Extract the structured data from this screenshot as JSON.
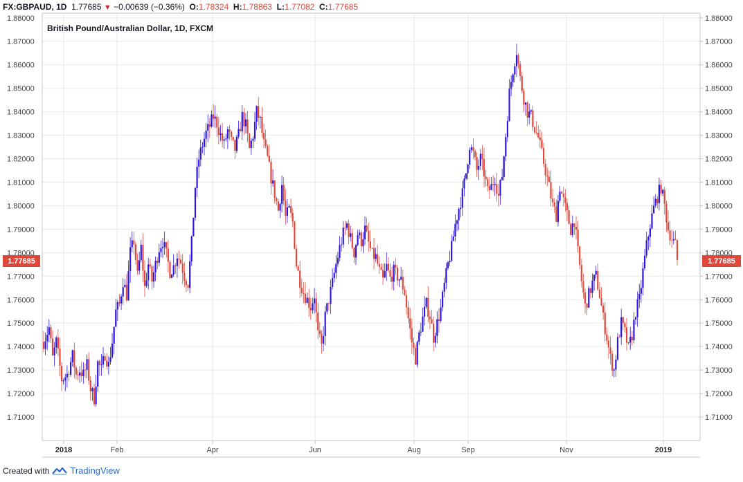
{
  "header": {
    "symbol": "FX:GBPAUD, 1D",
    "last": "1.77685",
    "change": "−0.00639 (−0.36%)",
    "o_label": "O:",
    "o_value": "1.78324",
    "h_label": "H:",
    "h_value": "1.78863",
    "l_label": "L:",
    "l_value": "1.77082",
    "c_label": "C:",
    "c_value": "1.77685"
  },
  "footer": {
    "created_with": "Created with",
    "brand": "TradingView"
  },
  "colors": {
    "up": "#2b16e0",
    "down": "#e0473b",
    "grid": "#e6e9ef",
    "axis": "#bfc3c9",
    "price_tag": "#e0473b"
  },
  "chart_data": {
    "type": "candlestick",
    "title": "British Pound/Australian Dollar, 1D, FXCM",
    "current_price": 1.77685,
    "current_price_label": "1.77685",
    "ylim": [
      1.7,
      1.882
    ],
    "y_ticks": [
      "1.71000",
      "1.72000",
      "1.73000",
      "1.74000",
      "1.75000",
      "1.76000",
      "1.77000",
      "1.78000",
      "1.79000",
      "1.80000",
      "1.81000",
      "1.82000",
      "1.83000",
      "1.84000",
      "1.85000",
      "1.86000",
      "1.87000",
      "1.88000"
    ],
    "x_ticks": [
      {
        "label": "2018",
        "bold": true
      },
      {
        "label": "Feb",
        "bold": false
      },
      {
        "label": "Apr",
        "bold": false
      },
      {
        "label": "Jun",
        "bold": false
      },
      {
        "label": "Aug",
        "bold": false
      },
      {
        "label": "Sep",
        "bold": false
      },
      {
        "label": "Nov",
        "bold": false
      },
      {
        "label": "2019",
        "bold": true
      }
    ],
    "grid": true,
    "path": [
      [
        0,
        1.742
      ],
      [
        3,
        1.748
      ],
      [
        5,
        1.735
      ],
      [
        7,
        1.742
      ],
      [
        10,
        1.726
      ],
      [
        13,
        1.728
      ],
      [
        16,
        1.736
      ],
      [
        18,
        1.728
      ],
      [
        20,
        1.73
      ],
      [
        22,
        1.728
      ],
      [
        24,
        1.732
      ],
      [
        26,
        1.722
      ],
      [
        28,
        1.718
      ],
      [
        30,
        1.733
      ],
      [
        32,
        1.73
      ],
      [
        34,
        1.737
      ],
      [
        36,
        1.732
      ],
      [
        38,
        1.742
      ],
      [
        40,
        1.755
      ],
      [
        42,
        1.758
      ],
      [
        44,
        1.768
      ],
      [
        46,
        1.762
      ],
      [
        48,
        1.78
      ],
      [
        50,
        1.785
      ],
      [
        52,
        1.77
      ],
      [
        54,
        1.782
      ],
      [
        56,
        1.765
      ],
      [
        58,
        1.775
      ],
      [
        60,
        1.768
      ],
      [
        62,
        1.775
      ],
      [
        64,
        1.782
      ],
      [
        66,
        1.785
      ],
      [
        68,
        1.779
      ],
      [
        70,
        1.772
      ],
      [
        72,
        1.774
      ],
      [
        74,
        1.779
      ],
      [
        76,
        1.776
      ],
      [
        78,
        1.77
      ],
      [
        80,
        1.767
      ],
      [
        82,
        1.784
      ],
      [
        84,
        1.808
      ],
      [
        86,
        1.82
      ],
      [
        88,
        1.826
      ],
      [
        90,
        1.831
      ],
      [
        92,
        1.834
      ],
      [
        94,
        1.838
      ],
      [
        96,
        1.835
      ],
      [
        98,
        1.83
      ],
      [
        100,
        1.826
      ],
      [
        102,
        1.832
      ],
      [
        104,
        1.827
      ],
      [
        106,
        1.824
      ],
      [
        108,
        1.83
      ],
      [
        110,
        1.838
      ],
      [
        112,
        1.834
      ],
      [
        114,
        1.824
      ],
      [
        116,
        1.83
      ],
      [
        118,
        1.84
      ],
      [
        120,
        1.836
      ],
      [
        122,
        1.826
      ],
      [
        124,
        1.82
      ],
      [
        126,
        1.812
      ],
      [
        128,
        1.805
      ],
      [
        130,
        1.798
      ],
      [
        132,
        1.809
      ],
      [
        134,
        1.795
      ],
      [
        136,
        1.798
      ],
      [
        138,
        1.793
      ],
      [
        140,
        1.775
      ],
      [
        142,
        1.768
      ],
      [
        144,
        1.763
      ],
      [
        146,
        1.76
      ],
      [
        148,
        1.757
      ],
      [
        150,
        1.762
      ],
      [
        152,
        1.745
      ],
      [
        154,
        1.74
      ],
      [
        156,
        1.753
      ],
      [
        158,
        1.76
      ],
      [
        160,
        1.767
      ],
      [
        162,
        1.775
      ],
      [
        164,
        1.782
      ],
      [
        166,
        1.788
      ],
      [
        168,
        1.792
      ],
      [
        170,
        1.786
      ],
      [
        172,
        1.78
      ],
      [
        174,
        1.788
      ],
      [
        176,
        1.785
      ],
      [
        178,
        1.79
      ],
      [
        180,
        1.784
      ],
      [
        182,
        1.779
      ],
      [
        184,
        1.778
      ],
      [
        186,
        1.772
      ],
      [
        188,
        1.768
      ],
      [
        190,
        1.774
      ],
      [
        192,
        1.769
      ],
      [
        194,
        1.772
      ],
      [
        196,
        1.77
      ],
      [
        198,
        1.768
      ],
      [
        200,
        1.763
      ],
      [
        202,
        1.752
      ],
      [
        204,
        1.742
      ],
      [
        206,
        1.735
      ],
      [
        208,
        1.745
      ],
      [
        210,
        1.752
      ],
      [
        212,
        1.758
      ],
      [
        214,
        1.753
      ],
      [
        216,
        1.744
      ],
      [
        218,
        1.75
      ],
      [
        220,
        1.756
      ],
      [
        222,
        1.766
      ],
      [
        224,
        1.775
      ],
      [
        226,
        1.782
      ],
      [
        228,
        1.792
      ],
      [
        230,
        1.799
      ],
      [
        232,
        1.805
      ],
      [
        234,
        1.814
      ],
      [
        236,
        1.826
      ],
      [
        238,
        1.822
      ],
      [
        240,
        1.815
      ],
      [
        242,
        1.82
      ],
      [
        244,
        1.814
      ],
      [
        246,
        1.806
      ],
      [
        248,
        1.808
      ],
      [
        250,
        1.812
      ],
      [
        252,
        1.804
      ],
      [
        254,
        1.813
      ],
      [
        256,
        1.83
      ],
      [
        258,
        1.848
      ],
      [
        260,
        1.858
      ],
      [
        262,
        1.866
      ],
      [
        264,
        1.854
      ],
      [
        266,
        1.846
      ],
      [
        268,
        1.84
      ],
      [
        270,
        1.838
      ],
      [
        272,
        1.833
      ],
      [
        274,
        1.829
      ],
      [
        276,
        1.822
      ],
      [
        278,
        1.815
      ],
      [
        280,
        1.808
      ],
      [
        282,
        1.8
      ],
      [
        284,
        1.796
      ],
      [
        286,
        1.808
      ],
      [
        288,
        1.802
      ],
      [
        290,
        1.796
      ],
      [
        292,
        1.79
      ],
      [
        294,
        1.794
      ],
      [
        296,
        1.78
      ],
      [
        298,
        1.768
      ],
      [
        300,
        1.757
      ],
      [
        302,
        1.762
      ],
      [
        304,
        1.767
      ],
      [
        306,
        1.77
      ],
      [
        308,
        1.762
      ],
      [
        310,
        1.752
      ],
      [
        312,
        1.744
      ],
      [
        314,
        1.735
      ],
      [
        316,
        1.73
      ],
      [
        318,
        1.742
      ],
      [
        320,
        1.75
      ],
      [
        322,
        1.746
      ],
      [
        324,
        1.739
      ],
      [
        326,
        1.745
      ],
      [
        328,
        1.755
      ],
      [
        330,
        1.76
      ],
      [
        332,
        1.772
      ],
      [
        334,
        1.783
      ],
      [
        336,
        1.792
      ],
      [
        338,
        1.799
      ],
      [
        340,
        1.804
      ],
      [
        342,
        1.808
      ],
      [
        344,
        1.8
      ],
      [
        346,
        1.79
      ],
      [
        348,
        1.786
      ],
      [
        350,
        1.783
      ],
      [
        351,
        1.7768
      ]
    ]
  }
}
